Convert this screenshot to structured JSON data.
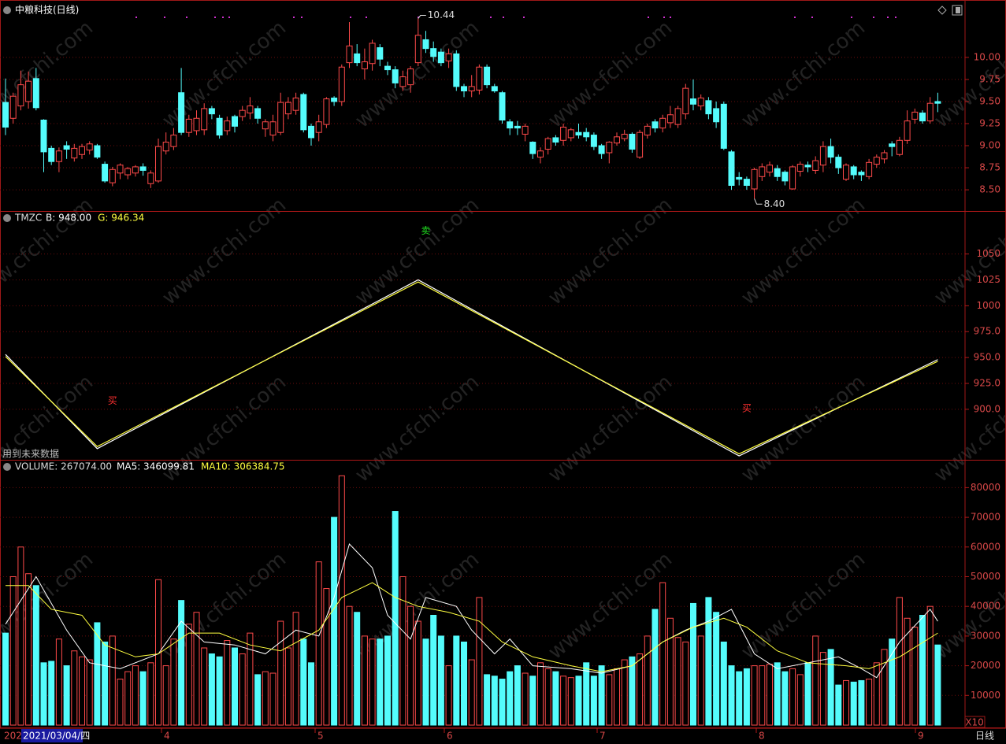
{
  "watermark": "www.cfchi.com",
  "date_prefix": "202",
  "date_box": "2021/03/04/四",
  "month_labels": [
    "4",
    "5",
    "6",
    "7",
    "8",
    "9"
  ],
  "period_label": "日线",
  "chart_data": [
    {
      "type": "candlestick",
      "title": "中粮科技(日线)",
      "up_color": "#ff4a4a",
      "down_color": "#54fcfc",
      "grid": true,
      "ylim": [
        8.26,
        10.65
      ],
      "yticks": [
        {
          "value": 8.5,
          "label": "8.50"
        },
        {
          "value": 8.75,
          "label": "8.75"
        },
        {
          "value": 9,
          "label": "9.00"
        },
        {
          "value": 9.25,
          "label": "9.25"
        },
        {
          "value": 9.5,
          "label": "9.50"
        },
        {
          "value": 9.75,
          "label": "9.75"
        },
        {
          "value": 10,
          "label": "10.00"
        }
      ],
      "annotations": [
        {
          "text": "10.44",
          "x": 54,
          "value": 10.44
        },
        {
          "text": "8.40",
          "x": 98,
          "value": 8.4
        }
      ],
      "candles": [
        [
          9.49,
          9.76,
          9.12,
          9.21
        ],
        [
          9.31,
          9.6,
          9.25,
          9.56
        ],
        [
          9.45,
          9.85,
          9.4,
          9.69
        ],
        [
          9.5,
          9.84,
          9.42,
          9.73
        ],
        [
          9.76,
          9.88,
          9.4,
          9.43
        ],
        [
          9.29,
          9.3,
          8.7,
          8.93
        ],
        [
          8.97,
          9.0,
          8.78,
          8.82
        ],
        [
          8.82,
          8.98,
          8.7,
          8.94
        ],
        [
          9.0,
          9.05,
          8.85,
          8.96
        ],
        [
          8.86,
          9.02,
          8.82,
          8.97
        ],
        [
          8.9,
          9.02,
          8.85,
          8.99
        ],
        [
          8.95,
          9.05,
          8.9,
          9.02
        ],
        [
          9.0,
          9.02,
          8.85,
          8.87
        ],
        [
          8.79,
          8.82,
          8.58,
          8.6
        ],
        [
          8.58,
          8.76,
          8.54,
          8.73
        ],
        [
          8.69,
          8.8,
          8.62,
          8.78
        ],
        [
          8.67,
          8.76,
          8.62,
          8.74
        ],
        [
          8.69,
          8.78,
          8.65,
          8.76
        ],
        [
          8.76,
          8.8,
          8.66,
          8.72
        ],
        [
          8.57,
          8.72,
          8.52,
          8.69
        ],
        [
          8.6,
          9.08,
          8.58,
          8.99
        ],
        [
          8.94,
          9.15,
          8.9,
          9.04
        ],
        [
          8.99,
          9.2,
          8.95,
          9.12
        ],
        [
          9.6,
          9.88,
          9.12,
          9.15
        ],
        [
          9.15,
          9.35,
          9.1,
          9.3
        ],
        [
          9.17,
          9.4,
          9.12,
          9.31
        ],
        [
          9.18,
          9.48,
          9.12,
          9.42
        ],
        [
          9.42,
          9.45,
          9.3,
          9.36
        ],
        [
          9.31,
          9.35,
          9.08,
          9.12
        ],
        [
          9.17,
          9.33,
          9.12,
          9.28
        ],
        [
          9.33,
          9.35,
          9.15,
          9.22
        ],
        [
          9.33,
          9.45,
          9.28,
          9.4
        ],
        [
          9.37,
          9.55,
          9.3,
          9.45
        ],
        [
          9.42,
          9.45,
          9.25,
          9.31
        ],
        [
          9.19,
          9.3,
          9.1,
          9.27
        ],
        [
          9.12,
          9.35,
          9.05,
          9.27
        ],
        [
          9.15,
          9.6,
          9.12,
          9.49
        ],
        [
          9.36,
          9.55,
          9.3,
          9.49
        ],
        [
          9.4,
          9.6,
          9.35,
          9.54
        ],
        [
          9.58,
          9.6,
          9.15,
          9.18
        ],
        [
          9.22,
          9.25,
          9.0,
          9.09
        ],
        [
          9.15,
          9.35,
          9.05,
          9.27
        ],
        [
          9.24,
          9.55,
          9.2,
          9.53
        ],
        [
          9.54,
          9.56,
          9.45,
          9.5
        ],
        [
          9.5,
          9.92,
          9.45,
          9.89
        ],
        [
          9.94,
          10.4,
          9.88,
          10.13
        ],
        [
          10.04,
          10.15,
          9.9,
          9.94
        ],
        [
          9.87,
          10.1,
          9.75,
          9.95
        ],
        [
          9.93,
          10.2,
          9.85,
          10.16
        ],
        [
          10.11,
          10.15,
          9.9,
          9.98
        ],
        [
          9.9,
          9.95,
          9.8,
          9.86
        ],
        [
          9.86,
          9.9,
          9.65,
          9.71
        ],
        [
          9.67,
          9.85,
          9.62,
          9.78
        ],
        [
          9.69,
          9.9,
          9.6,
          9.87
        ],
        [
          9.94,
          10.44,
          9.9,
          10.25
        ],
        [
          10.2,
          10.3,
          10.05,
          10.1
        ],
        [
          10.1,
          10.18,
          9.95,
          10.01
        ],
        [
          10.06,
          10.1,
          9.9,
          9.94
        ],
        [
          9.96,
          10.1,
          9.88,
          10.04
        ],
        [
          10.04,
          10.08,
          9.62,
          9.67
        ],
        [
          9.67,
          9.7,
          9.55,
          9.62
        ],
        [
          9.62,
          9.8,
          9.55,
          9.67
        ],
        [
          9.63,
          9.92,
          9.58,
          9.89
        ],
        [
          9.89,
          9.92,
          9.65,
          9.69
        ],
        [
          9.67,
          9.7,
          9.6,
          9.62
        ],
        [
          9.6,
          9.62,
          9.25,
          9.29
        ],
        [
          9.27,
          9.3,
          9.12,
          9.2
        ],
        [
          9.22,
          9.28,
          9.12,
          9.2
        ],
        [
          9.13,
          9.25,
          9.05,
          9.22
        ],
        [
          9.04,
          9.05,
          8.85,
          8.91
        ],
        [
          8.87,
          8.98,
          8.8,
          8.94
        ],
        [
          8.96,
          9.1,
          8.9,
          9.08
        ],
        [
          9.09,
          9.12,
          9.0,
          9.04
        ],
        [
          9.06,
          9.25,
          9.0,
          9.21
        ],
        [
          9.09,
          9.2,
          9.05,
          9.18
        ],
        [
          9.15,
          9.25,
          9.08,
          9.12
        ],
        [
          9.15,
          9.2,
          9.05,
          9.1
        ],
        [
          9.12,
          9.15,
          8.95,
          8.99
        ],
        [
          9.0,
          9.02,
          8.85,
          8.91
        ],
        [
          8.92,
          9.05,
          8.8,
          9.04
        ],
        [
          9.03,
          9.15,
          9.0,
          9.1
        ],
        [
          9.08,
          9.18,
          9.05,
          9.13
        ],
        [
          9.13,
          9.15,
          8.92,
          8.96
        ],
        [
          8.87,
          9.18,
          8.85,
          9.15
        ],
        [
          9.12,
          9.25,
          9.08,
          9.22
        ],
        [
          9.27,
          9.3,
          9.15,
          9.2
        ],
        [
          9.2,
          9.35,
          9.15,
          9.31
        ],
        [
          9.26,
          9.45,
          9.2,
          9.35
        ],
        [
          9.24,
          9.45,
          9.2,
          9.42
        ],
        [
          9.36,
          9.7,
          9.3,
          9.65
        ],
        [
          9.53,
          9.75,
          9.4,
          9.47
        ],
        [
          9.45,
          9.58,
          9.4,
          9.54
        ],
        [
          9.51,
          9.55,
          9.3,
          9.36
        ],
        [
          9.42,
          9.5,
          9.2,
          9.27
        ],
        [
          9.47,
          9.5,
          8.95,
          8.97
        ],
        [
          8.93,
          8.95,
          8.5,
          8.55
        ],
        [
          8.64,
          8.7,
          8.55,
          8.62
        ],
        [
          8.62,
          8.65,
          8.5,
          8.55
        ],
        [
          8.51,
          8.75,
          8.4,
          8.73
        ],
        [
          8.65,
          8.8,
          8.6,
          8.76
        ],
        [
          8.7,
          8.82,
          8.65,
          8.78
        ],
        [
          8.74,
          8.78,
          8.6,
          8.65
        ],
        [
          8.7,
          8.72,
          8.55,
          8.6
        ],
        [
          8.51,
          8.78,
          8.5,
          8.76
        ],
        [
          8.71,
          8.82,
          8.65,
          8.79
        ],
        [
          8.78,
          8.82,
          8.7,
          8.76
        ],
        [
          8.72,
          8.88,
          8.68,
          8.83
        ],
        [
          8.78,
          9.05,
          8.7,
          8.99
        ],
        [
          8.99,
          9.08,
          8.8,
          8.87
        ],
        [
          8.87,
          8.9,
          8.68,
          8.75
        ],
        [
          8.62,
          8.8,
          8.6,
          8.78
        ],
        [
          8.76,
          8.78,
          8.62,
          8.67
        ],
        [
          8.7,
          8.72,
          8.6,
          8.67
        ],
        [
          8.65,
          8.85,
          8.62,
          8.81
        ],
        [
          8.79,
          8.9,
          8.75,
          8.87
        ],
        [
          8.85,
          8.95,
          8.8,
          8.92
        ],
        [
          9.02,
          9.05,
          8.88,
          8.99
        ],
        [
          8.9,
          9.1,
          8.88,
          9.06
        ],
        [
          9.06,
          9.4,
          9.02,
          9.28
        ],
        [
          9.3,
          9.42,
          9.25,
          9.38
        ],
        [
          9.37,
          9.4,
          9.25,
          9.28
        ],
        [
          9.28,
          9.55,
          9.25,
          9.48
        ],
        [
          9.5,
          9.6,
          9.38,
          9.48
        ]
      ]
    },
    {
      "type": "line",
      "title": "TMZC",
      "grid": true,
      "ylim": [
        852,
        1090
      ],
      "yticks": [
        {
          "value": 900,
          "label": "900.0"
        },
        {
          "value": 925,
          "label": "925.0"
        },
        {
          "value": 950,
          "label": "950.0"
        },
        {
          "value": 975,
          "label": "975.0"
        },
        1000,
        1025,
        1050
      ],
      "series": [
        {
          "name": "B: 948.00",
          "color": "#ffffff",
          "x": [
            0,
            12,
            54,
            96,
            122
          ],
          "values": [
            953,
            862,
            1025,
            855,
            948
          ]
        },
        {
          "name": "G: 946.34",
          "color": "#ffff40",
          "x": [
            0,
            12,
            54,
            96,
            122
          ],
          "values": [
            951,
            864,
            1023,
            857,
            946.34
          ]
        }
      ],
      "signals": [
        {
          "text": "卖",
          "color": "#20e020",
          "x": 55,
          "y": 1072
        },
        {
          "text": "买",
          "color": "#ff3030",
          "x": 14,
          "y": 908
        },
        {
          "text": "买",
          "color": "#ff3030",
          "x": 97,
          "y": 900.5
        }
      ],
      "note": "用到未来数据"
    },
    {
      "type": "bar",
      "title": "VOLUME: 267074.00",
      "unit": "X10",
      "grid": true,
      "ylim": [
        0,
        89120
      ],
      "yticks": [
        10000,
        20000,
        30000,
        40000,
        50000,
        60000,
        70000,
        80000
      ],
      "values": [
        31000,
        50000,
        60000,
        51000,
        47000,
        21000,
        21500,
        29000,
        20000,
        25000,
        23000,
        22000,
        34500,
        28000,
        30000,
        15500,
        18000,
        20000,
        18000,
        21000,
        49000,
        20000,
        29000,
        42000,
        34000,
        38000,
        26000,
        24000,
        23000,
        28500,
        26000,
        24000,
        31000,
        17000,
        18000,
        17500,
        35000,
        26000,
        38000,
        29000,
        21000,
        55000,
        46000,
        70000,
        84000,
        40000,
        38000,
        30000,
        29000,
        29000,
        30000,
        72000,
        50000,
        40000,
        35000,
        29000,
        37000,
        30000,
        20000,
        30000,
        28000,
        22000,
        43000,
        17000,
        16500,
        15500,
        18000,
        20000,
        17500,
        16500,
        21000,
        19000,
        18000,
        16500,
        16000,
        16500,
        21000,
        16500,
        20000,
        17000,
        19000,
        22000,
        23000,
        24000,
        30000,
        39000,
        48000,
        36000,
        29500,
        28000,
        41000,
        30000,
        43000,
        38000,
        28000,
        20000,
        18000,
        19000,
        20000,
        20000,
        20500,
        21000,
        18000,
        19000,
        17000,
        21000,
        30000,
        24500,
        25500,
        13500,
        15000,
        14500,
        15000,
        15500,
        21000,
        25500,
        29000,
        43000,
        36000,
        33000,
        37000,
        40000,
        27000
      ],
      "series": [
        {
          "name": "MA5: 346099.81",
          "color": "#ffffff",
          "x": [
            0,
            4,
            8,
            11,
            15,
            20,
            23,
            26,
            30,
            34,
            38,
            41,
            43,
            45,
            48,
            50,
            53,
            55,
            59,
            61,
            64,
            66,
            69,
            74,
            78,
            82,
            86,
            89,
            92,
            95,
            98,
            101,
            105,
            109,
            112,
            114,
            117,
            121,
            122
          ],
          "values": [
            34000,
            50000,
            32000,
            21000,
            19000,
            24000,
            35000,
            28000,
            27000,
            24000,
            32000,
            30000,
            43000,
            61000,
            53000,
            37000,
            29000,
            43000,
            40000,
            32000,
            24000,
            29000,
            20000,
            19000,
            17500,
            20000,
            28000,
            32000,
            35000,
            39000,
            24000,
            19000,
            21000,
            23000,
            19000,
            16000,
            28000,
            39000,
            35000
          ]
        },
        {
          "name": "MA10: 306384.75",
          "color": "#ffff40",
          "x": [
            0,
            3,
            6,
            10,
            13,
            17,
            20,
            24,
            28,
            32,
            36,
            41,
            44,
            48,
            51,
            54,
            58,
            62,
            65,
            69,
            74,
            78,
            82,
            86,
            90,
            94,
            97,
            101,
            105,
            110,
            113,
            117,
            122
          ],
          "values": [
            47000,
            47000,
            39000,
            37000,
            27000,
            23000,
            24000,
            31000,
            31000,
            27000,
            25000,
            32000,
            43000,
            48000,
            43000,
            40000,
            38000,
            35000,
            28000,
            23000,
            20000,
            18000,
            20000,
            28000,
            33000,
            36000,
            33000,
            25000,
            21000,
            20000,
            19000,
            23000,
            31000
          ]
        }
      ]
    }
  ]
}
